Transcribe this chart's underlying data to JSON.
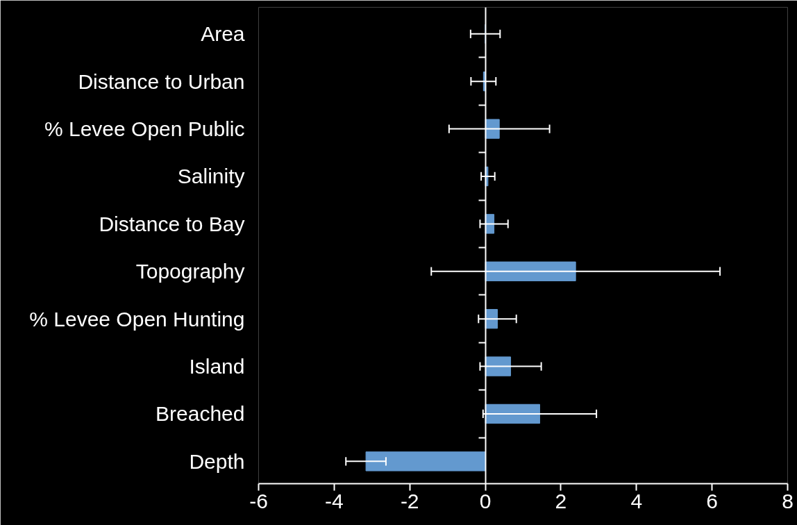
{
  "chart_data": {
    "type": "bar",
    "orientation": "horizontal",
    "categories": [
      "Area",
      "Distance to Urban",
      "% Levee Open Public",
      "Salinity",
      "Distance to Bay",
      "Topography",
      "% Levee Open Hunting",
      "Island",
      "Breached",
      "Depth"
    ],
    "values": [
      0,
      -0.05,
      0.37,
      0.07,
      0.23,
      2.39,
      0.32,
      0.67,
      1.44,
      -3.16
    ],
    "errors": [
      0.39,
      0.33,
      1.33,
      0.18,
      0.37,
      3.82,
      0.5,
      0.81,
      1.5,
      0.53
    ],
    "color": "#6399cf",
    "xlim": [
      -6,
      8
    ],
    "xticks": [
      -6,
      -4,
      -2,
      0,
      2,
      4,
      6,
      8
    ]
  }
}
